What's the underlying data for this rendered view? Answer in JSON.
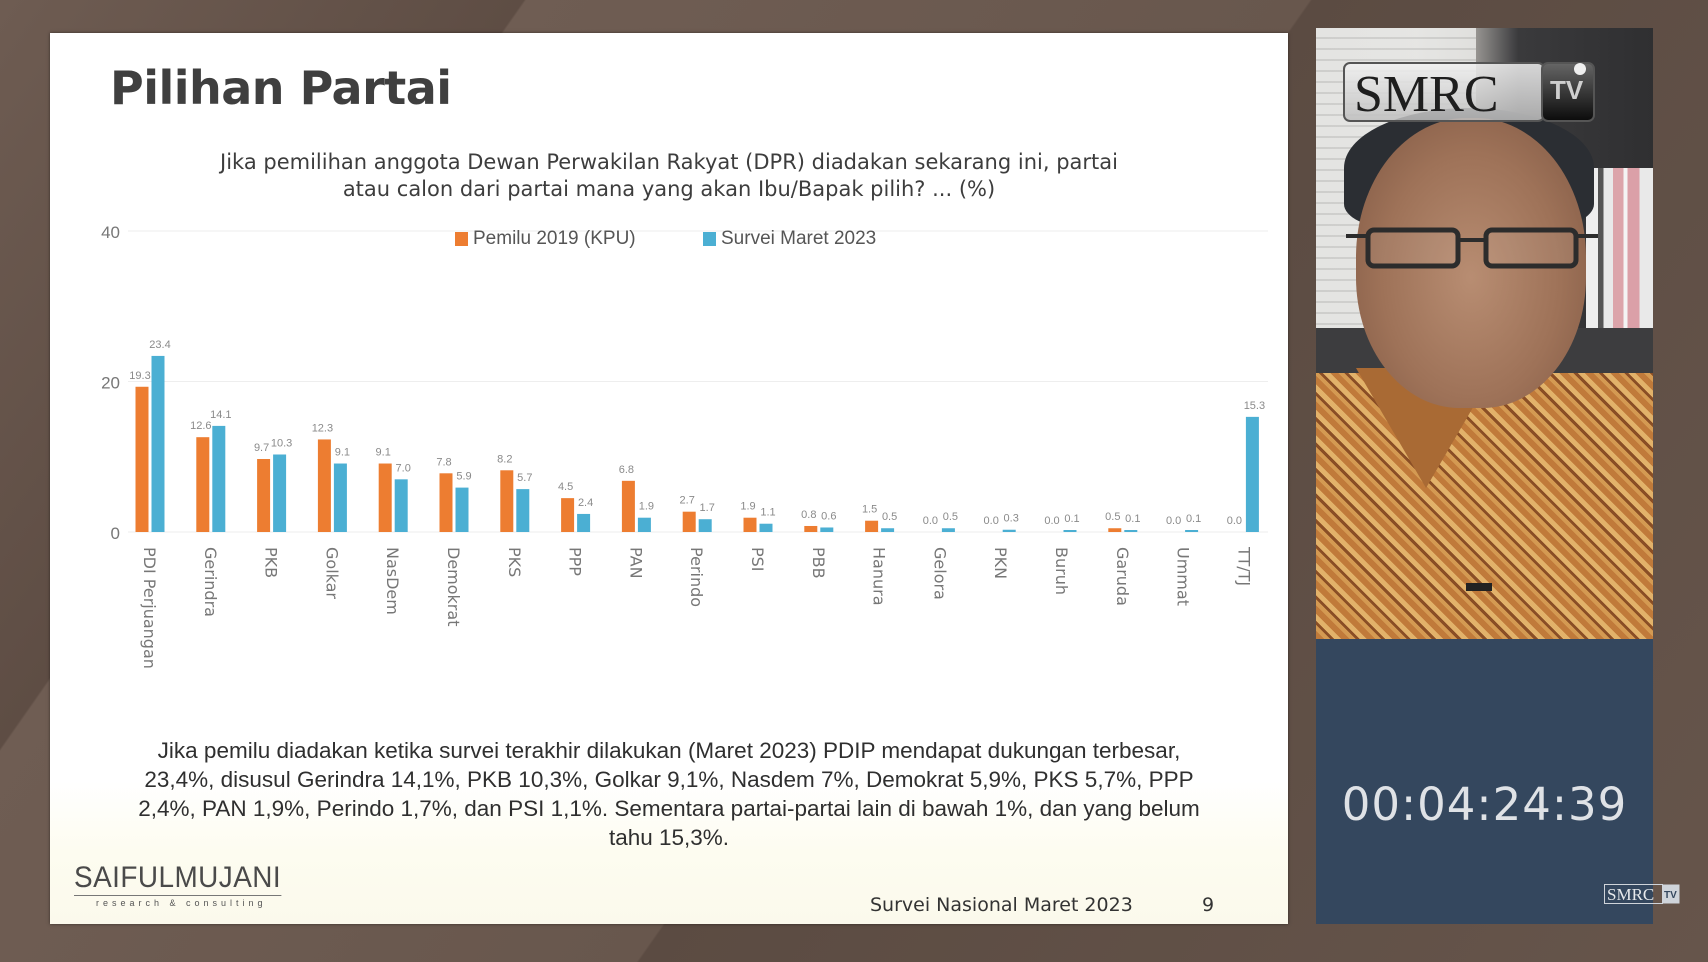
{
  "slide": {
    "title": "Pilihan Partai",
    "question_lines": [
      "Jika pemilihan anggota Dewan Perwakilan Rakyat (DPR) diadakan sekarang ini, partai",
      "atau calon dari partai mana yang akan Ibu/Bapak pilih?  ... (%)"
    ],
    "summary_lines": [
      "Jika pemilu diadakan ketika survei terakhir dilakukan (Maret 2023) PDIP mendapat dukungan terbesar,",
      "23,4%, disusul Gerindra 14,1%, PKB 10,3%, Golkar 9,1%, Nasdem 7%, Demokrat 5,9%, PKS 5,7%, PPP",
      "2,4%, PAN 1,9%, Perindo 1,7%, dan PSI 1,1%. Sementara partai-partai lain di bawah 1%, dan yang belum",
      "tahu 15,3%."
    ],
    "logo_main": "SAIFULMUJANI",
    "logo_sub": "research & consulting",
    "footer": "Survei Nasional Maret 2023",
    "page_number": "9"
  },
  "chart_data": {
    "type": "bar",
    "title": "",
    "xlabel": "",
    "ylabel": "",
    "ylim": [
      0,
      40
    ],
    "yticks": [
      "0",
      "20",
      "40"
    ],
    "grid": true,
    "legend_position": "top-center",
    "categories": [
      "PDI Perjuangan",
      "Gerindra",
      "PKB",
      "Golkar",
      "NasDem",
      "Demokrat",
      "PKS",
      "PPP",
      "PAN",
      "Perindo",
      "PSI",
      "PBB",
      "Hanura",
      "Gelora",
      "PKN",
      "Buruh",
      "Garuda",
      "Ummat",
      "TT/TJ"
    ],
    "series": [
      {
        "name": "Pemilu 2019 (KPU)",
        "color": "#ed7d31",
        "values": [
          19.3,
          12.6,
          9.7,
          12.3,
          9.1,
          7.8,
          8.2,
          4.5,
          6.8,
          2.7,
          1.9,
          0.8,
          1.5,
          0.0,
          0.0,
          0.0,
          0.5,
          0.0,
          0.0
        ],
        "labels": [
          "19.3",
          "12.6",
          "9.7",
          "12.3",
          "9.1",
          "7.8",
          "8.2",
          "4.5",
          "6.8",
          "2.7",
          "1.9",
          "0.8",
          "1.5",
          "0.0",
          "0.0",
          "0.0",
          "0.5",
          "0.0",
          "0.0"
        ]
      },
      {
        "name": "Survei Maret 2023",
        "color": "#4bafd3",
        "values": [
          23.4,
          14.1,
          10.3,
          9.1,
          7.0,
          5.9,
          5.7,
          2.4,
          1.9,
          1.7,
          1.1,
          0.6,
          0.5,
          0.5,
          0.3,
          0.1,
          0.1,
          0.1,
          15.3
        ],
        "labels": [
          "23.4",
          "14.1",
          "10.3",
          "9.1",
          "7.0",
          "5.9",
          "5.7",
          "2.4",
          "1.9",
          "1.7",
          "1.1",
          "0.6",
          "0.5",
          "0.5",
          "0.3",
          "0.1",
          "0.1",
          "0.1",
          "15.3"
        ]
      }
    ]
  },
  "video": {
    "channel_logo": "SMRC TV",
    "timecode": "00:04:24:39",
    "watermark": "SMRC TV"
  }
}
